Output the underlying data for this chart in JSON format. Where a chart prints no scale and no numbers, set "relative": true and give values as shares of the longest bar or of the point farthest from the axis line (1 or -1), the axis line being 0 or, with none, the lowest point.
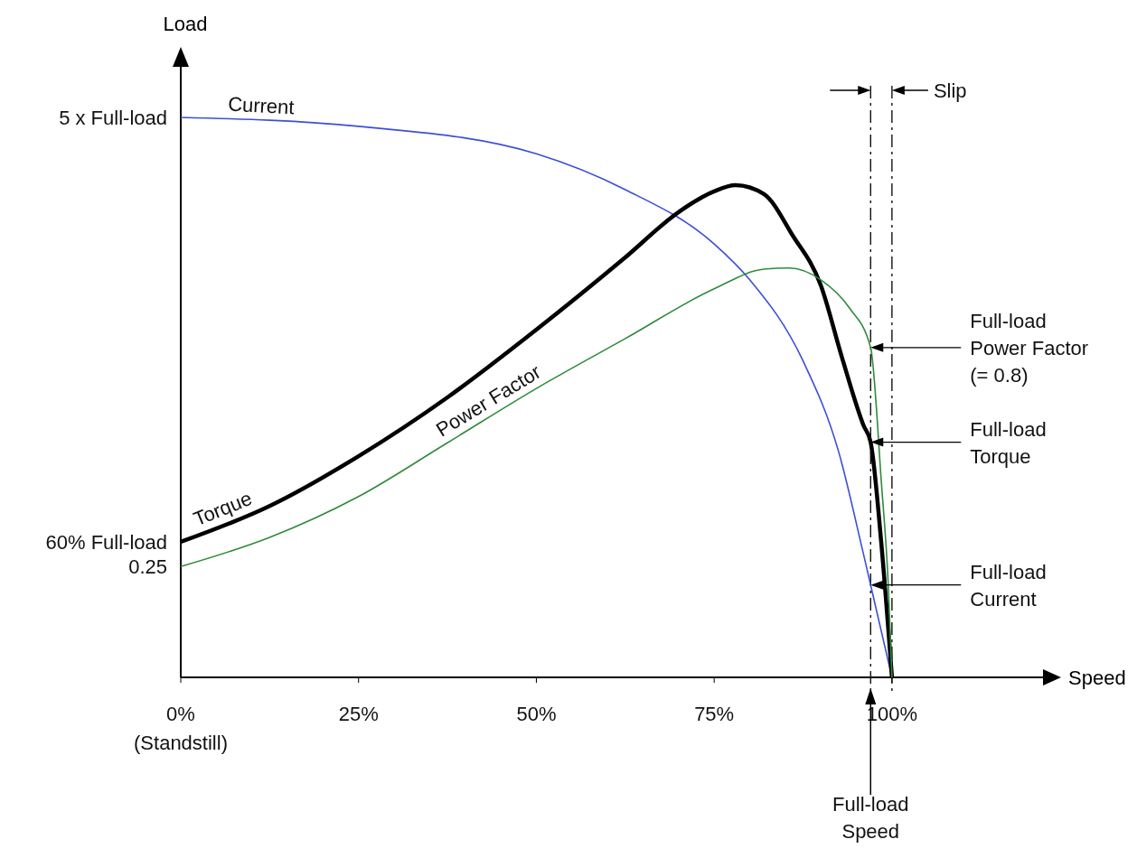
{
  "chart_data": {
    "type": "line",
    "relative": true,
    "xlabel": "Speed",
    "ylabel": "Load",
    "xlim": [
      0,
      122
    ],
    "xticks": [
      {
        "value": 0,
        "label": "0%\n(Standstill)"
      },
      {
        "value": 25,
        "label": "25%"
      },
      {
        "value": 50,
        "label": "50%"
      },
      {
        "value": 75,
        "label": "75%"
      },
      {
        "value": 100,
        "label": "100%"
      }
    ],
    "series": [
      {
        "name": "Current",
        "color": "#3b4fd6",
        "x": [
          0,
          25,
          50,
          62.5,
          75,
          80,
          87.5,
          92.5,
          96,
          100
        ],
        "values": [
          1,
          0.984,
          0.935,
          0.871,
          0.774,
          0.71,
          0.565,
          0.403,
          0.22,
          0
        ]
      },
      {
        "name": "Torque",
        "color": "#000000",
        "x": [
          0,
          12.5,
          25,
          37.5,
          50,
          62.5,
          70,
          75,
          78,
          82,
          86,
          90,
          93,
          96,
          97,
          98.5,
          100
        ],
        "values": [
          0.242,
          0.306,
          0.395,
          0.5,
          0.621,
          0.75,
          0.831,
          0.868,
          0.879,
          0.863,
          0.79,
          0.7,
          0.57,
          0.45,
          0.42,
          0.24,
          0
        ]
      },
      {
        "name": "Power Factor",
        "color": "#2e8b3a",
        "x": [
          0,
          12.5,
          25,
          37.5,
          50,
          62.5,
          75,
          82,
          85.5,
          90,
          94,
          97,
          98.5,
          99.5,
          100
        ],
        "values": [
          0.198,
          0.25,
          0.323,
          0.419,
          0.516,
          0.605,
          0.694,
          0.729,
          0.731,
          0.71,
          0.66,
          0.589,
          0.35,
          0.16,
          0
        ]
      }
    ],
    "ref_lines": [
      {
        "axis": "x",
        "value": 97,
        "label": "Full-load\nSpeed",
        "line_style": "dashed",
        "color": "#000000"
      },
      {
        "axis": "x",
        "value": 100,
        "line_style": "dashed",
        "color": "#000000"
      }
    ],
    "annotations": [
      "5 x Full-load",
      "60% Full-load",
      "0.25",
      "Full-load\nPower Factor\n(= 0.8)",
      "Full-load\nTorque",
      "Full-load\nCurrent",
      "Slip"
    ],
    "marker": "none",
    "line_style": "solid",
    "grid": false
  }
}
